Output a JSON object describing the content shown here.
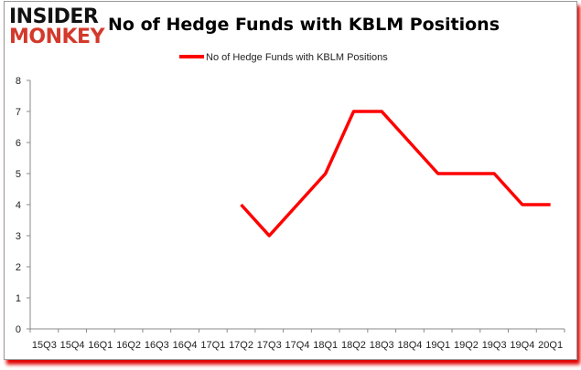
{
  "logo": {
    "line1": "INSIDER",
    "line2": "MONKEY"
  },
  "chart_data": {
    "type": "line",
    "title": "No of Hedge Funds with KBLM Positions",
    "xlabel": "",
    "ylabel": "",
    "categories": [
      "15Q3",
      "15Q4",
      "16Q1",
      "16Q2",
      "16Q3",
      "16Q4",
      "17Q1",
      "17Q2",
      "17Q3",
      "17Q4",
      "18Q1",
      "18Q2",
      "18Q3",
      "18Q4",
      "19Q1",
      "19Q2",
      "19Q3",
      "19Q4",
      "20Q1"
    ],
    "series": [
      {
        "name": "No of Hedge Funds with KBLM Positions",
        "color": "#ff0000",
        "values": [
          null,
          null,
          null,
          null,
          null,
          null,
          null,
          4,
          3,
          4,
          5,
          7,
          7,
          6,
          5,
          5,
          5,
          4,
          4
        ]
      }
    ],
    "ylim": [
      0,
      8
    ],
    "yticks": [
      "0",
      "1",
      "2",
      "3",
      "4",
      "5",
      "6",
      "7",
      "8"
    ],
    "grid": false,
    "legend_position": "top"
  }
}
